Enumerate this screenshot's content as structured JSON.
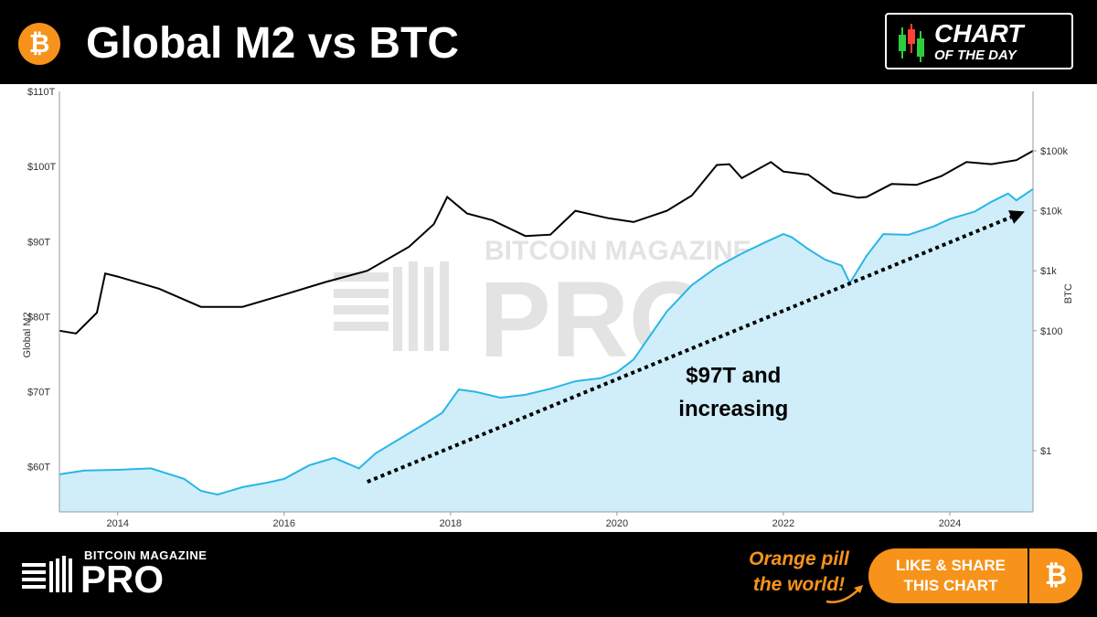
{
  "header": {
    "title": "Global M2 vs BTC",
    "logo_symbol": "₿",
    "badge_line1": "CHART",
    "badge_line2": "OF THE DAY"
  },
  "footer": {
    "brand_small": "BITCOIN MAGAZINE",
    "brand_big": "PRO",
    "tagline_line1": "Orange pill",
    "tagline_line2": "the world!",
    "share_line1": "LIKE & SHARE",
    "share_line2": "THIS CHART",
    "share_symbol": "₿"
  },
  "watermark": {
    "line1": "BITCOIN MAGAZINE",
    "line2": "PRO"
  },
  "colors": {
    "btc_orange": "#f7931a",
    "m2_line": "#29b6e6",
    "m2_fill": "#cfeef9",
    "btc_line": "#000000"
  },
  "chart_data": {
    "type": "line",
    "title": "Global M2 vs BTC",
    "ylabel_left": "Global M2",
    "ylabel_right": "BTC",
    "y_left_ticks": [
      "$60T",
      "$70T",
      "$80T",
      "$90T",
      "$100T",
      "$110T"
    ],
    "y_left_range": [
      54,
      110
    ],
    "y_right_ticks": [
      "$1",
      "$100",
      "$1k",
      "$10k",
      "$100k"
    ],
    "y_right_scale": "log",
    "x_ticks": [
      "2014",
      "2016",
      "2018",
      "2020",
      "2022",
      "2024"
    ],
    "x_range": [
      2013.3,
      2025.0
    ],
    "annotation": "$97T and increasing",
    "annotation_lines": [
      "$97T and",
      "increasing"
    ],
    "trend_arrow": {
      "from": [
        2017.0,
        58.0
      ],
      "to": [
        2024.9,
        94.0
      ]
    },
    "series": [
      {
        "name": "Global M2",
        "axis": "left",
        "x": [
          2013.3,
          2013.6,
          2014.0,
          2014.4,
          2014.8,
          2015.0,
          2015.2,
          2015.5,
          2015.8,
          2016.0,
          2016.3,
          2016.6,
          2016.9,
          2017.1,
          2017.4,
          2017.7,
          2017.9,
          2018.1,
          2018.3,
          2018.6,
          2018.9,
          2019.2,
          2019.5,
          2019.8,
          2020.0,
          2020.2,
          2020.4,
          2020.6,
          2020.9,
          2021.2,
          2021.5,
          2021.8,
          2022.0,
          2022.1,
          2022.3,
          2022.5,
          2022.7,
          2022.8,
          2023.0,
          2023.2,
          2023.5,
          2023.8,
          2024.0,
          2024.3,
          2024.5,
          2024.7,
          2024.8,
          2025.0
        ],
        "values": [
          59.0,
          59.5,
          59.6,
          59.8,
          58.4,
          56.8,
          56.3,
          57.3,
          57.9,
          58.4,
          60.2,
          61.2,
          59.8,
          61.8,
          63.8,
          65.8,
          67.2,
          70.3,
          70.0,
          69.2,
          69.6,
          70.4,
          71.4,
          71.8,
          72.6,
          74.3,
          77.5,
          80.7,
          84.2,
          86.6,
          88.4,
          90.0,
          91.0,
          90.6,
          89.0,
          87.6,
          86.8,
          84.5,
          88.1,
          91.0,
          90.9,
          92.0,
          93.0,
          94.0,
          95.3,
          96.4,
          95.5,
          97.0
        ]
      },
      {
        "name": "BTC",
        "axis": "right",
        "x": [
          2013.3,
          2013.5,
          2013.75,
          2013.85,
          2014.0,
          2014.5,
          2015.0,
          2015.5,
          2016.0,
          2016.5,
          2017.0,
          2017.5,
          2017.8,
          2017.96,
          2018.2,
          2018.5,
          2018.9,
          2019.2,
          2019.5,
          2019.9,
          2020.2,
          2020.6,
          2020.9,
          2021.2,
          2021.35,
          2021.5,
          2021.85,
          2022.0,
          2022.3,
          2022.6,
          2022.9,
          2023.0,
          2023.3,
          2023.6,
          2023.9,
          2024.2,
          2024.5,
          2024.8,
          2025.0
        ],
        "values": [
          100,
          90,
          200,
          900,
          800,
          500,
          250,
          250,
          400,
          650,
          1000,
          2500,
          6000,
          17000,
          9000,
          7000,
          3800,
          4000,
          10000,
          7500,
          6500,
          10000,
          18000,
          58000,
          60000,
          35000,
          65000,
          45000,
          40000,
          20000,
          16500,
          17000,
          28000,
          27000,
          38000,
          65000,
          60000,
          70000,
          100000
        ]
      }
    ]
  }
}
